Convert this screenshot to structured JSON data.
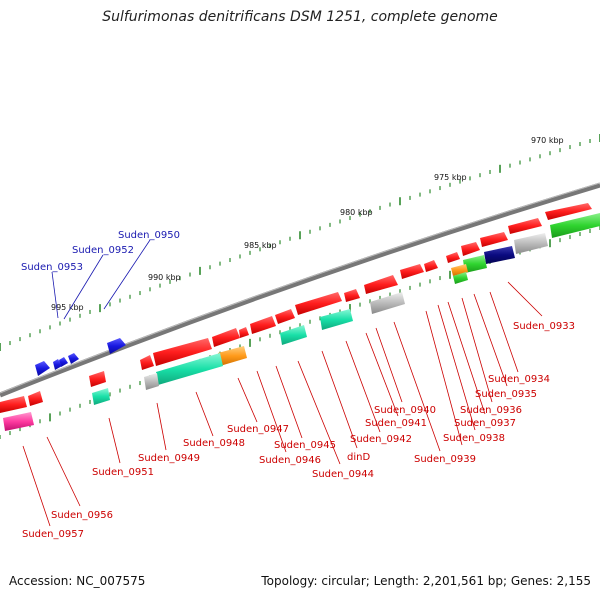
{
  "title": "Sulfurimonas denitrificans DSM 1251, complete genome",
  "footer": {
    "accession": "Accession: NC_007575",
    "topology": "Topology: circular; Length: 2,201,561 bp; Genes: 2,155"
  },
  "scale_labels": [
    "970 kbp",
    "975 kbp",
    "980 kbp",
    "985 kbp",
    "990 kbp",
    "995 kbp"
  ],
  "colors": {
    "backbone": "#777777",
    "forward_gene": "#ff1e1e",
    "reverse_gene": "#1818e0",
    "tick": "#2e8b2e",
    "label_red": "#cc0000",
    "label_blue": "#1a1ab0",
    "cog_green": "#2fd42f",
    "cog_teal": "#19e0a8",
    "cog_orange": "#ff9a1a",
    "cog_navy": "#0a0a80",
    "cog_grey": "#bbbbbb",
    "cog_pink": "#ff3aa0"
  },
  "gene_labels_reverse": [
    "Suden_0950",
    "Suden_0952",
    "Suden_0953"
  ],
  "gene_labels_forward": [
    "Suden_0933",
    "Suden_0934",
    "Suden_0935",
    "Suden_0936",
    "Suden_0937",
    "Suden_0938",
    "Suden_0939",
    "Suden_0940",
    "Suden_0941",
    "Suden_0942",
    "dinD",
    "Suden_0944",
    "Suden_0945",
    "Suden_0946",
    "Suden_0947",
    "Suden_0948",
    "Suden_0949",
    "Suden_0951",
    "Suden_0956",
    "Suden_0957"
  ]
}
